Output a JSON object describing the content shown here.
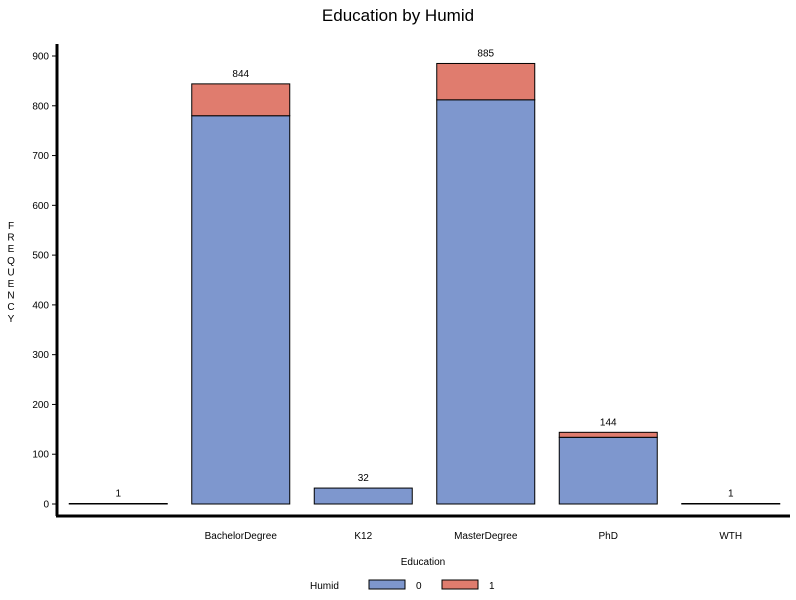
{
  "chart_data": {
    "type": "bar",
    "stacked": true,
    "title": "Education by Humid",
    "xlabel": "Education",
    "ylabel": "FREQUENCY",
    "categories": [
      "",
      "BachelorDegree",
      "K12",
      "MasterDegree",
      "PhD",
      "WTH"
    ],
    "series": [
      {
        "name": "0",
        "color": "#7e97ce",
        "values": [
          1,
          780,
          32,
          812,
          134,
          1
        ]
      },
      {
        "name": "1",
        "color": "#e07c6e",
        "values": [
          0,
          64,
          0,
          73,
          10,
          0
        ]
      }
    ],
    "totals": [
      1,
      844,
      32,
      885,
      144,
      1
    ],
    "ylim": [
      0,
      900
    ],
    "yticks": [
      0,
      100,
      200,
      300,
      400,
      500,
      600,
      700,
      800,
      900
    ],
    "grid": false,
    "legend": {
      "title": "Humid",
      "position": "bottom"
    }
  }
}
